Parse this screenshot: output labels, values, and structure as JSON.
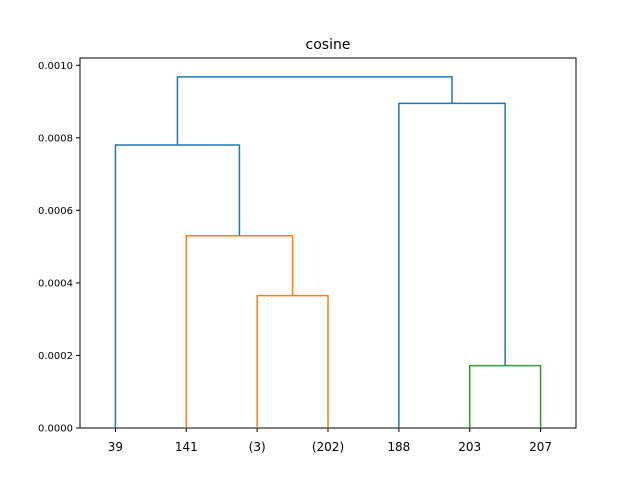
{
  "chart_data": {
    "type": "dendrogram",
    "title": "cosine",
    "ylim": [
      0,
      0.00102
    ],
    "y_ticks": [
      "0.0000",
      "0.0002",
      "0.0004",
      "0.0006",
      "0.0008",
      "0.0010"
    ],
    "y_tick_values": [
      0,
      0.0002,
      0.0004,
      0.0006,
      0.0008,
      0.001
    ],
    "leaves": [
      "39",
      "141",
      "(3)",
      "(202)",
      "188",
      "203",
      "207"
    ],
    "colors": {
      "blue": "#1f77b4",
      "orange": "#ff7f0e",
      "green": "#2ca02c"
    },
    "links": [
      {
        "left": "141",
        "right": "(3)",
        "height": 0.00053,
        "color": "orange",
        "children": [
          "141",
          {
            "left": "(3)",
            "right": "(202)",
            "height": 0.000365
          }
        ]
      },
      {
        "left": "(3)",
        "right": "(202)",
        "height": 0.000365,
        "color": "orange"
      },
      {
        "left": "203",
        "right": "207",
        "height": 0.000172,
        "color": "green"
      },
      {
        "left": "39",
        "right": "141-group",
        "height": 0.00078,
        "color": "blue"
      },
      {
        "left": "188",
        "right": "203-group",
        "height": 0.000895,
        "color": "blue"
      },
      {
        "left": "39-group",
        "right": "188-group",
        "height": 0.000968,
        "color": "blue"
      }
    ]
  }
}
